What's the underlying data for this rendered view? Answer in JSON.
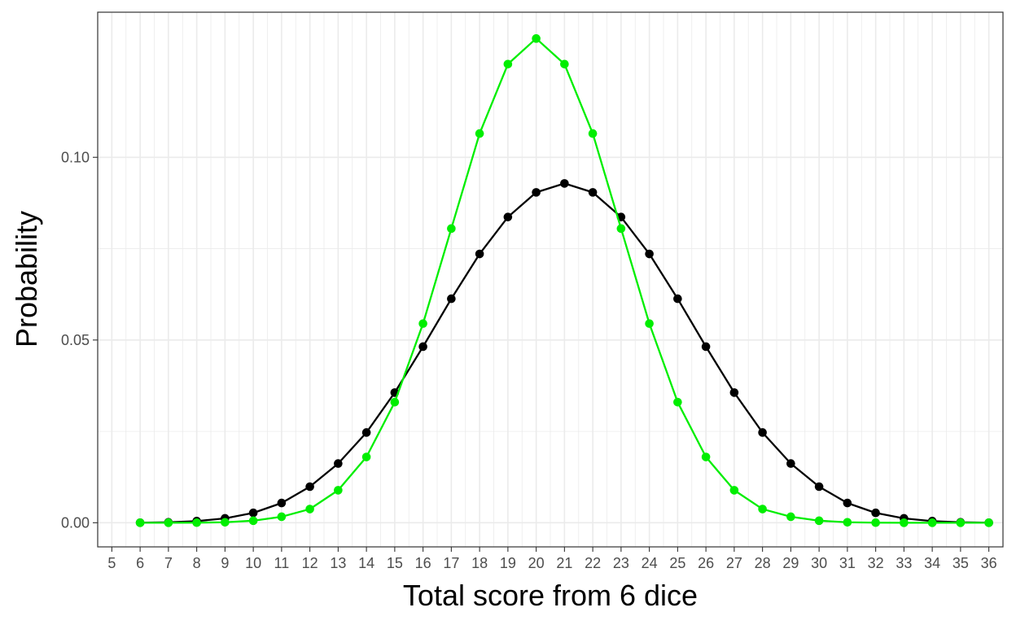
{
  "chart_data": {
    "type": "line",
    "xlabel": "Total score from 6 dice",
    "ylabel": "Probability",
    "xlim": [
      4.5,
      36.5
    ],
    "ylim": [
      -0.0066,
      0.1397
    ],
    "x_ticks": [
      "5",
      "6",
      "7",
      "8",
      "9",
      "10",
      "11",
      "12",
      "13",
      "14",
      "15",
      "16",
      "17",
      "18",
      "19",
      "20",
      "21",
      "22",
      "23",
      "24",
      "25",
      "26",
      "27",
      "28",
      "29",
      "30",
      "31",
      "32",
      "33",
      "34",
      "35",
      "36"
    ],
    "y_ticks": [
      "0.00",
      "0.05",
      "0.10"
    ],
    "y_tick_values": [
      0,
      0.05,
      0.1
    ],
    "grid": true,
    "legend": "none",
    "x": [
      6,
      7,
      8,
      9,
      10,
      11,
      12,
      13,
      14,
      15,
      16,
      17,
      18,
      19,
      20,
      21,
      22,
      23,
      24,
      25,
      26,
      27,
      28,
      29,
      30,
      31,
      32,
      33,
      34,
      35,
      36
    ],
    "series": [
      {
        "color": "#000000",
        "values": [
          2.14e-05,
          0.0001286,
          0.0004501,
          0.0012003,
          0.0027006,
          0.0054012,
          0.0098765,
          0.0162037,
          0.0246914,
          0.0356224,
          0.0481824,
          0.0612997,
          0.0735597,
          0.0836549,
          0.0904064,
          0.0928498,
          0.0904064,
          0.0836549,
          0.0735597,
          0.0612997,
          0.0481824,
          0.0356224,
          0.0246914,
          0.0162037,
          0.0098765,
          0.0054012,
          0.0027006,
          0.0012003,
          0.0004501,
          0.0001286,
          2.14e-05
        ]
      },
      {
        "color": "#00ee00",
        "values": [
          5e-07,
          3.8e-06,
          2.47e-05,
          0.0001317,
          0.0005636,
          0.0016432,
          0.0037425,
          0.0089,
          0.018,
          0.033,
          0.0545,
          0.0805,
          0.1065,
          0.1255,
          0.1325,
          0.1255,
          0.1065,
          0.0805,
          0.0545,
          0.033,
          0.018,
          0.0089,
          0.0037425,
          0.0016432,
          0.0005636,
          0.0001317,
          2.47e-05,
          3.8e-06,
          5e-07,
          1e-07,
          0.0
        ]
      }
    ]
  }
}
